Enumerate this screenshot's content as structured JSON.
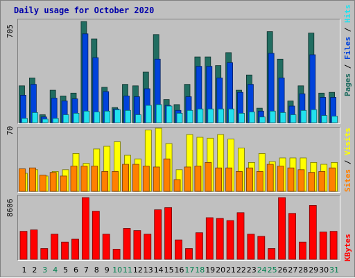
{
  "chart_data": [
    {
      "type": "bar",
      "title": "Daily usage for October 2020",
      "categories": [
        "1",
        "2",
        "3",
        "4",
        "5",
        "6",
        "7",
        "8",
        "9",
        "10",
        "11",
        "12",
        "13",
        "14",
        "15",
        "16",
        "17",
        "18",
        "19",
        "20",
        "21",
        "22",
        "23",
        "24",
        "25",
        "26",
        "27",
        "28",
        "29",
        "30",
        "31"
      ],
      "weekend_days": [
        "3",
        "4",
        "10",
        "11",
        "17",
        "18",
        "24",
        "25",
        "31"
      ],
      "ymax_label": "705",
      "ylim": [
        0,
        705
      ],
      "series": [
        {
          "name": "Pages",
          "values": [
            255,
            310,
            55,
            225,
            185,
            205,
            700,
            580,
            245,
            105,
            265,
            255,
            350,
            610,
            160,
            125,
            265,
            455,
            455,
            395,
            485,
            225,
            330,
            100,
            630,
            440,
            150,
            255,
            620,
            205,
            210
          ]
        },
        {
          "name": "Files",
          "values": [
            190,
            265,
            40,
            170,
            150,
            165,
            615,
            450,
            215,
            95,
            185,
            180,
            235,
            440,
            120,
            85,
            180,
            390,
            390,
            310,
            415,
            210,
            265,
            80,
            480,
            310,
            115,
            200,
            470,
            175,
            175
          ]
        },
        {
          "name": "Hits",
          "values": [
            30,
            70,
            25,
            30,
            55,
            65,
            80,
            75,
            80,
            90,
            85,
            55,
            120,
            125,
            115,
            65,
            85,
            95,
            95,
            95,
            95,
            65,
            75,
            40,
            80,
            70,
            55,
            85,
            90,
            50,
            45
          ]
        }
      ],
      "colors": {
        "Pages": "#216d61",
        "Files": "#0043db",
        "Hits": "#21e1ee"
      },
      "side_labels": [
        "Pages",
        "Files",
        "Hits"
      ]
    },
    {
      "type": "bar",
      "ymax_label": "70",
      "ylim": [
        0,
        70
      ],
      "series": [
        {
          "name": "Visits",
          "values": [
            20,
            24,
            17,
            22,
            24,
            42,
            31,
            47,
            50,
            55,
            40,
            36,
            68,
            70,
            53,
            24,
            63,
            60,
            59,
            63,
            58,
            48,
            32,
            42,
            33,
            37,
            37,
            37,
            32,
            30,
            32
          ]
        },
        {
          "name": "Sites",
          "values": [
            25,
            26,
            18,
            21,
            17,
            28,
            28,
            28,
            22,
            22,
            30,
            30,
            28,
            27,
            36,
            13,
            27,
            28,
            32,
            26,
            26,
            22,
            26,
            22,
            30,
            28,
            26,
            24,
            21,
            22,
            26
          ]
        }
      ],
      "colors": {
        "Visits": "#ffff00",
        "Sites": "#ff8000"
      },
      "side_labels": [
        "Sites",
        "Visits"
      ]
    },
    {
      "type": "bar",
      "ymax_label": "8606",
      "ylim": [
        0,
        8606
      ],
      "series": [
        {
          "name": "KBytes",
          "values": [
            3900,
            4100,
            1500,
            3500,
            2400,
            2800,
            8606,
            6700,
            3500,
            1400,
            4300,
            4000,
            3500,
            6900,
            7200,
            2700,
            1500,
            3700,
            5800,
            5700,
            5400,
            6500,
            3500,
            3200,
            1500,
            8606,
            6400,
            2400,
            7500,
            3800,
            3900
          ]
        }
      ],
      "colors": {
        "KBytes": "#ff0000"
      },
      "side_labels": [
        "KBytes"
      ]
    }
  ],
  "colors": {
    "title": "#0000aa",
    "weekday_label": "#000000",
    "weekend_label": "#00804f",
    "panel_bg": "#c0c0c0",
    "label_separator": "#000000"
  }
}
